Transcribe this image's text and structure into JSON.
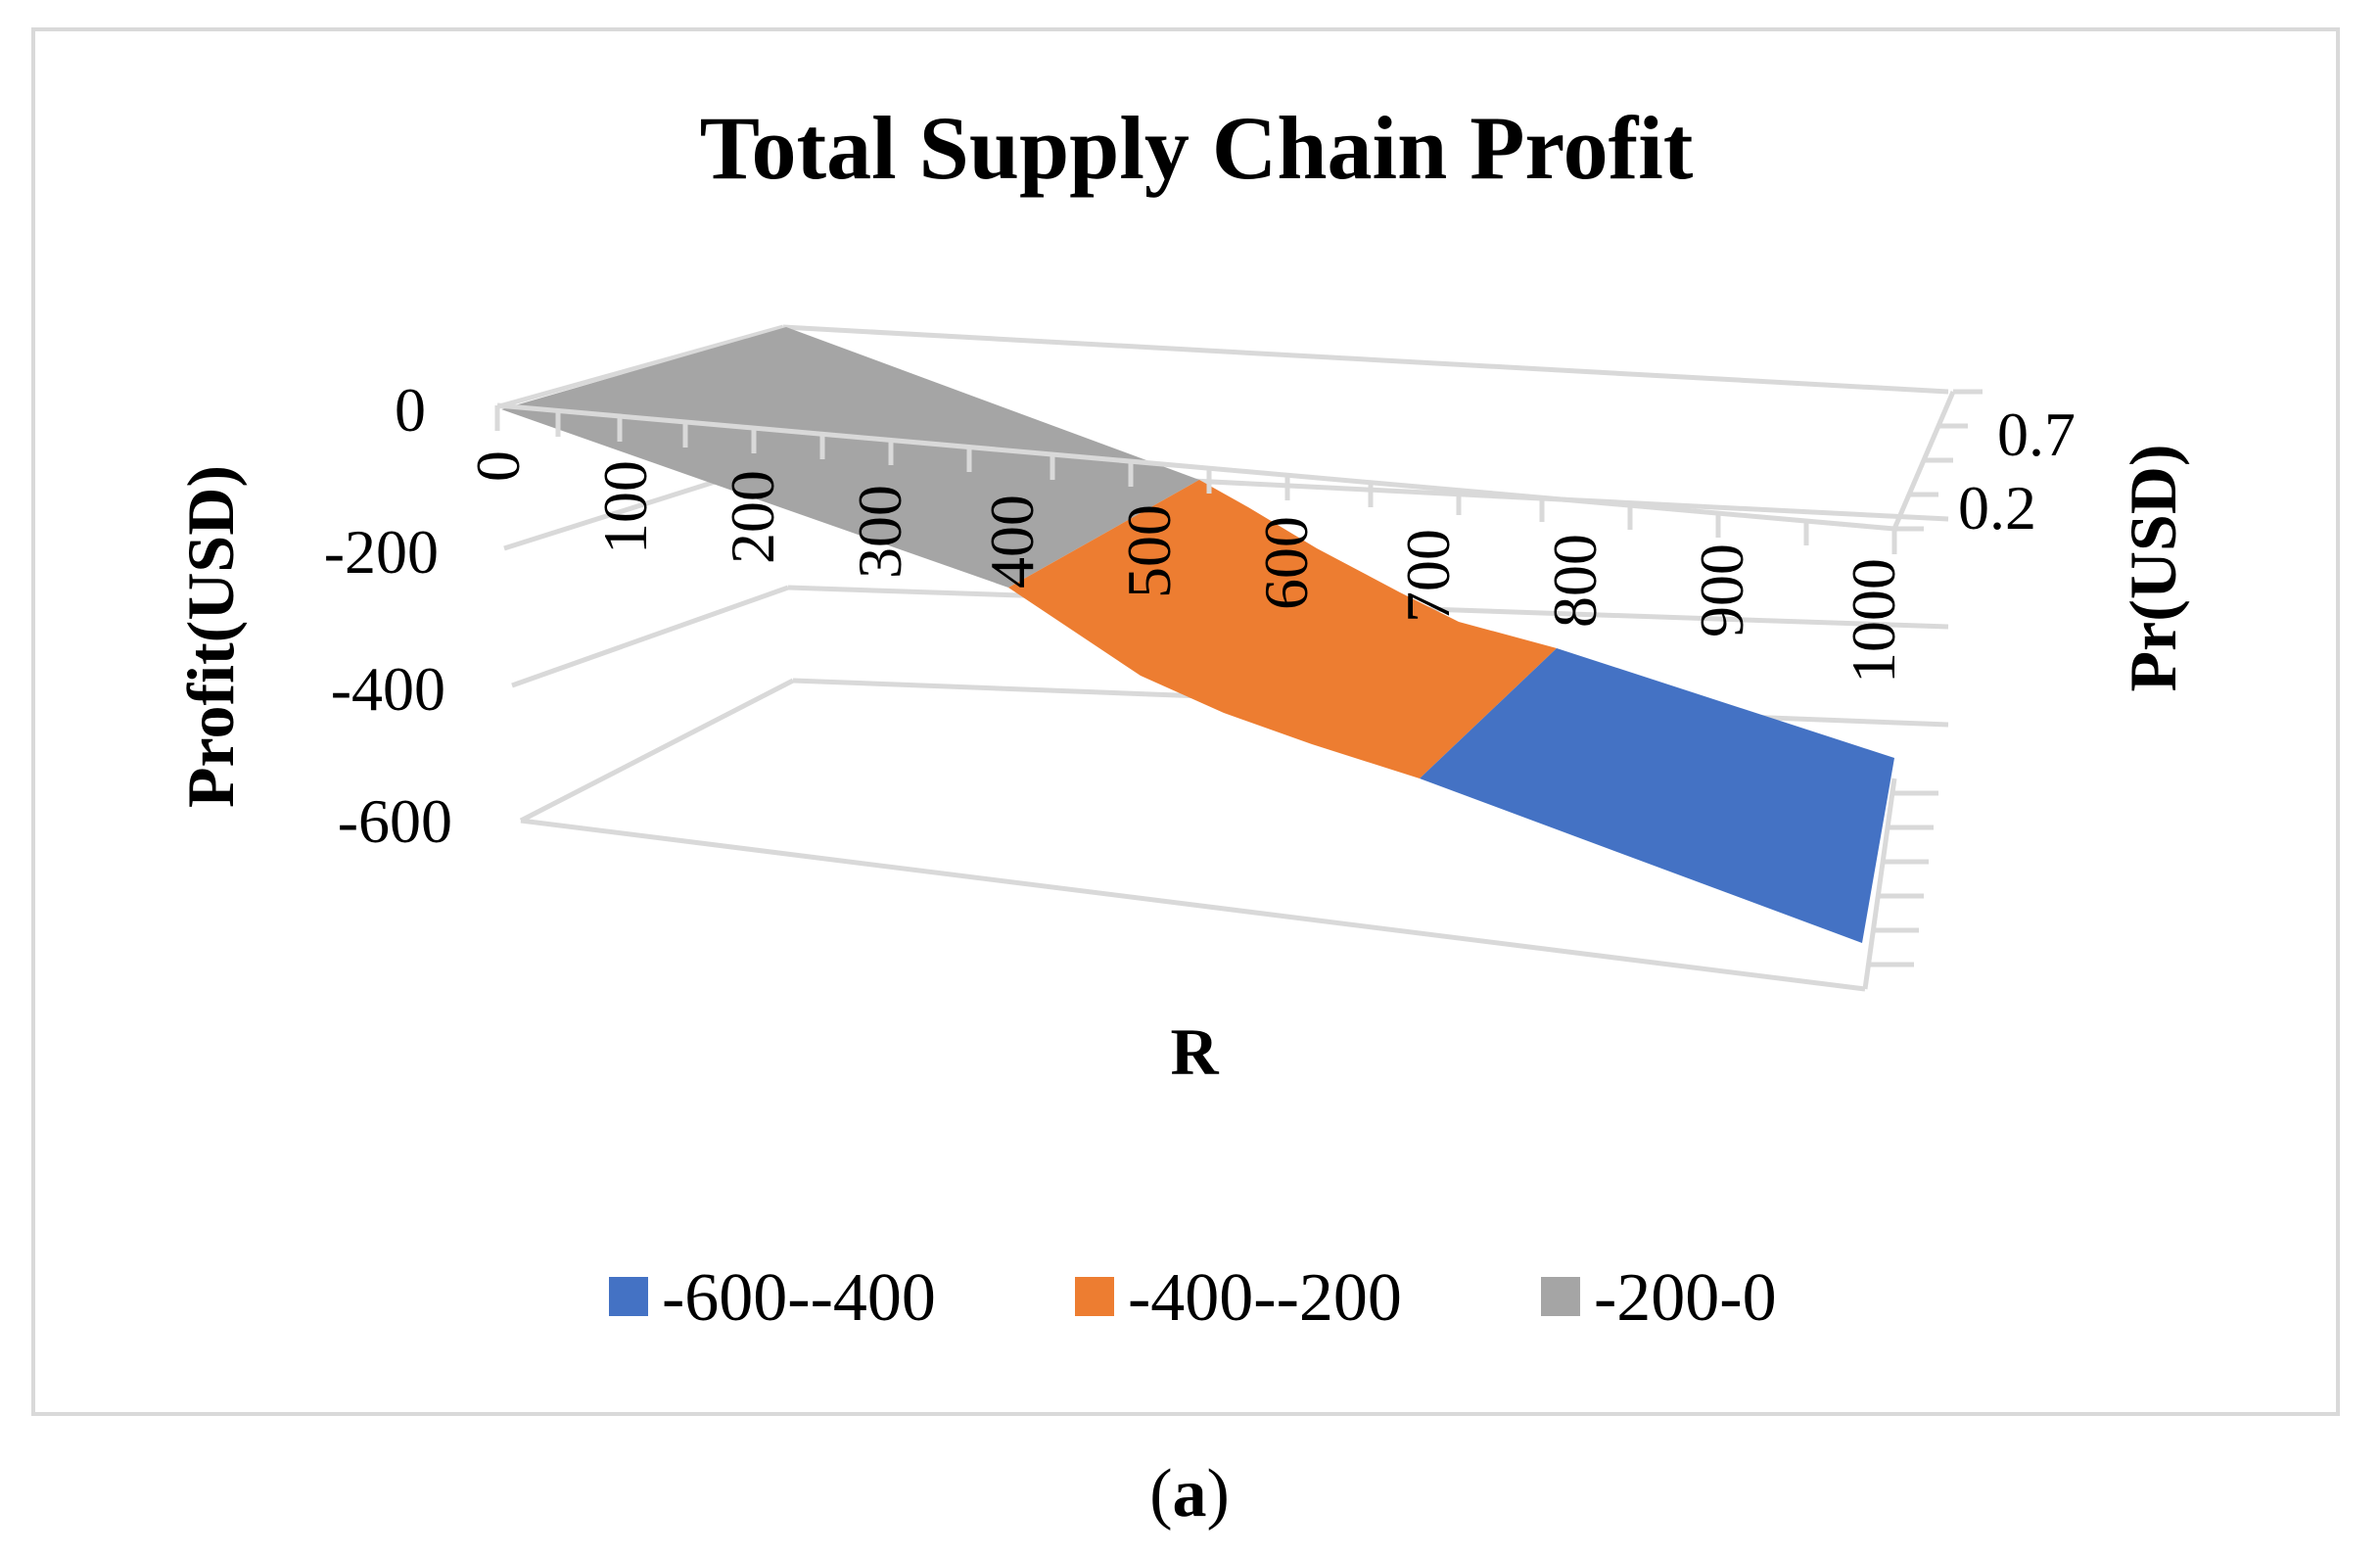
{
  "chart_data": {
    "type": "surface",
    "title": "Total Supply Chain Profit",
    "xlabel": "R",
    "ylabel": "Profit(USD)",
    "zlabel": "Pr(USD)",
    "x": [
      0,
      100,
      200,
      300,
      400,
      500,
      600,
      700,
      800,
      900,
      1000
    ],
    "x_tick_labels": [
      "0",
      "100",
      "200",
      "300",
      "400",
      "500",
      "600",
      "700",
      "800",
      "900",
      "1000"
    ],
    "depth_values": [
      0.2,
      0.7
    ],
    "depth_tick_labels": [
      "0.2",
      "0.7"
    ],
    "y_tick_labels": [
      "0",
      "-200",
      "-400",
      "-600"
    ],
    "ylim": [
      -600,
      0
    ],
    "profit_by_R": [
      0,
      -60,
      -120,
      -180,
      -240,
      -300,
      -360,
      -420,
      -470,
      -530,
      -590
    ],
    "legend": [
      {
        "label": "-600--400",
        "color": "#4472c4"
      },
      {
        "label": "-400--200",
        "color": "#ed7d31"
      },
      {
        "label": "-200-0",
        "color": "#a5a5a5"
      }
    ]
  },
  "caption": {
    "open": "(",
    "letter": "a",
    "close": ")"
  }
}
